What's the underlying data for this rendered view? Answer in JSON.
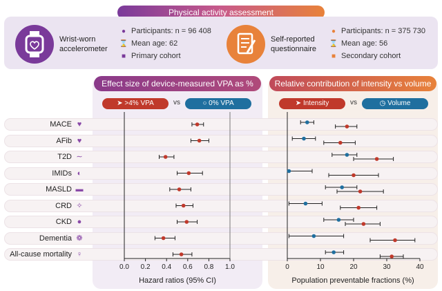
{
  "header": {
    "title": "Physical activity assessment"
  },
  "devices": [
    {
      "title_line1": "Wrist-worn",
      "title_line2": "accelerometer",
      "icon": "smartwatch-icon",
      "participants": "Participants: n = 96 408",
      "mean_age": "Mean age: 62",
      "cohort": "Primary cohort",
      "accent": "#7a3a9a"
    },
    {
      "title_line1": "Self-reported",
      "title_line2": "questionnaire",
      "icon": "questionnaire-icon",
      "participants": "Participants: n = 375 730",
      "mean_age": "Mean age: 56",
      "cohort": "Secondary cohort",
      "accent": "#e8823a"
    }
  ],
  "left_panel": {
    "title": "Effect size of device-measured VPA as %",
    "legend_a": ">4% VPA",
    "vs": "vs",
    "legend_b": "0% VPA"
  },
  "right_panel": {
    "title": "Relative contribution of intensity vs volume",
    "legend_a": "Intensity",
    "vs": "vs",
    "legend_b": "Volume"
  },
  "outcomes": [
    {
      "label": "MACE",
      "icon": "heart-icon"
    },
    {
      "label": "AFib",
      "icon": "broken-heart-icon"
    },
    {
      "label": "T2D",
      "icon": "pancreas-icon"
    },
    {
      "label": "IMIDs",
      "icon": "immune-icon"
    },
    {
      "label": "MASLD",
      "icon": "liver-icon"
    },
    {
      "label": "CRD",
      "icon": "lungs-icon"
    },
    {
      "label": "CKD",
      "icon": "kidney-icon"
    },
    {
      "label": "Dementia",
      "icon": "brain-icon"
    },
    {
      "label": "All-cause mortality",
      "icon": "people-icon"
    }
  ],
  "chart_data": [
    {
      "type": "scatter",
      "title": "Effect size of device-measured VPA as %",
      "xlabel": "Hazard ratios (95% CI)",
      "xlim": [
        0,
        1.0
      ],
      "xticks": [
        "0.0",
        "0.2",
        "0.4",
        "0.6",
        "0.8",
        "1.0"
      ],
      "xtick_values": [
        0,
        0.2,
        0.4,
        0.6,
        0.8,
        1.0
      ],
      "reference_line": 1.0,
      "color": "#c0392b",
      "series": [
        {
          "name": ">4% VPA vs 0% VPA",
          "estimates": [
            0.69,
            0.71,
            0.39,
            0.61,
            0.52,
            0.56,
            0.59,
            0.37,
            0.54
          ],
          "lower": [
            0.64,
            0.63,
            0.33,
            0.5,
            0.43,
            0.49,
            0.5,
            0.29,
            0.46
          ],
          "upper": [
            0.75,
            0.8,
            0.47,
            0.74,
            0.63,
            0.65,
            0.69,
            0.48,
            0.64
          ]
        }
      ]
    },
    {
      "type": "scatter",
      "title": "Relative contribution of intensity vs volume",
      "xlabel": "Population preventable fractions (%)",
      "xlim": [
        0,
        40
      ],
      "xticks": [
        "0",
        "10",
        "20",
        "30",
        "40"
      ],
      "xtick_values": [
        0,
        10,
        20,
        30,
        40
      ],
      "series": [
        {
          "name": "Intensity",
          "color": "#c0392b",
          "estimates": [
            18,
            16,
            27,
            20,
            22,
            21.5,
            23,
            32.5,
            31.5
          ],
          "lower": [
            14.5,
            11,
            20,
            12.5,
            15,
            16,
            17.5,
            25,
            28
          ],
          "upper": [
            21,
            20.5,
            32,
            27.5,
            29,
            27,
            28,
            38.5,
            35
          ]
        },
        {
          "name": "Volume",
          "color": "#1f6f9f",
          "estimates": [
            6,
            5,
            18,
            0.5,
            16.5,
            5.5,
            15.5,
            8,
            14
          ],
          "lower": [
            4,
            1.5,
            13.5,
            0,
            11.5,
            0.5,
            11,
            0.5,
            11.5
          ],
          "upper": [
            8,
            8.5,
            21,
            7.5,
            21,
            10.5,
            20,
            17,
            17
          ]
        }
      ]
    }
  ]
}
